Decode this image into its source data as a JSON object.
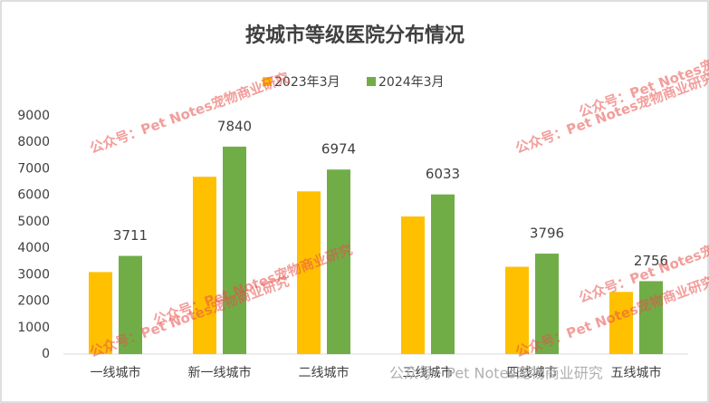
{
  "chart_data": {
    "type": "bar",
    "title": "按城市等级医院分布情况",
    "categories": [
      "一线城市",
      "新一线城市",
      "二线城市",
      "三线城市",
      "四线城市",
      "五线城市"
    ],
    "series": [
      {
        "name": "2023年3月",
        "color": "#FFC000",
        "values": [
          3100,
          6700,
          6150,
          5200,
          3300,
          2350
        ]
      },
      {
        "name": "2024年3月",
        "color": "#70AD47",
        "values": [
          3711,
          7840,
          6974,
          6033,
          3796,
          2756
        ]
      }
    ],
    "ylim": [
      0,
      9000
    ],
    "yticks": [
      0,
      1000,
      2000,
      3000,
      4000,
      5000,
      6000,
      7000,
      8000,
      9000
    ],
    "data_labels_series": 1,
    "watermark": "公众号：Pet Notes宠物商业研究",
    "footer_watermark": "公众号 · Pet Notes宠物商业研究"
  }
}
